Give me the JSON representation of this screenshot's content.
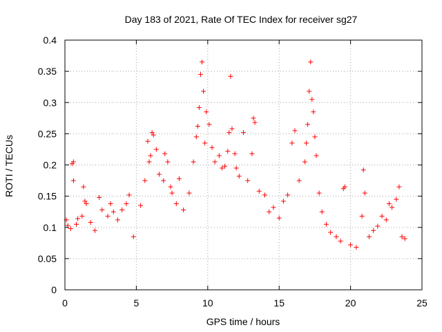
{
  "chart_data": {
    "type": "scatter",
    "title": "Day 183 of 2021, Rate Of TEC Index for receiver sg27",
    "xlabel": "GPS time / hours",
    "ylabel": "ROTI / TECUs",
    "xlim": [
      0,
      25
    ],
    "ylim": [
      0,
      0.4
    ],
    "xticks": [
      0,
      5,
      10,
      15,
      20,
      25
    ],
    "xtick_labels": [
      "0",
      "5",
      "10",
      "15",
      "20",
      "25"
    ],
    "yticks": [
      0,
      0.05,
      0.1,
      0.15,
      0.2,
      0.25,
      0.3,
      0.35,
      0.4
    ],
    "ytick_labels": [
      "0",
      "0.05",
      "0.1",
      "0.15",
      "0.2",
      "0.25",
      "0.3",
      "0.35",
      "0.4"
    ],
    "grid": true,
    "marker": "plus",
    "color": "#ff0000",
    "series": [
      {
        "name": "ROTI",
        "points": [
          [
            0.1,
            0.112
          ],
          [
            0.2,
            0.103
          ],
          [
            0.4,
            0.098
          ],
          [
            0.5,
            0.202
          ],
          [
            0.6,
            0.205
          ],
          [
            0.6,
            0.175
          ],
          [
            0.8,
            0.105
          ],
          [
            0.9,
            0.114
          ],
          [
            1.2,
            0.118
          ],
          [
            1.3,
            0.165
          ],
          [
            1.4,
            0.142
          ],
          [
            1.5,
            0.138
          ],
          [
            1.8,
            0.108
          ],
          [
            2.1,
            0.095
          ],
          [
            2.4,
            0.148
          ],
          [
            2.6,
            0.128
          ],
          [
            3.0,
            0.118
          ],
          [
            3.2,
            0.138
          ],
          [
            3.4,
            0.125
          ],
          [
            3.7,
            0.112
          ],
          [
            4.0,
            0.128
          ],
          [
            4.3,
            0.138
          ],
          [
            4.5,
            0.152
          ],
          [
            4.8,
            0.085
          ],
          [
            5.3,
            0.135
          ],
          [
            5.6,
            0.175
          ],
          [
            5.8,
            0.238
          ],
          [
            5.9,
            0.205
          ],
          [
            6.0,
            0.215
          ],
          [
            6.1,
            0.252
          ],
          [
            6.2,
            0.248
          ],
          [
            6.4,
            0.225
          ],
          [
            6.6,
            0.185
          ],
          [
            6.9,
            0.175
          ],
          [
            7.0,
            0.218
          ],
          [
            7.2,
            0.205
          ],
          [
            7.4,
            0.165
          ],
          [
            7.5,
            0.155
          ],
          [
            7.8,
            0.138
          ],
          [
            8.0,
            0.178
          ],
          [
            8.3,
            0.128
          ],
          [
            8.7,
            0.155
          ],
          [
            9.0,
            0.205
          ],
          [
            9.2,
            0.245
          ],
          [
            9.3,
            0.262
          ],
          [
            9.4,
            0.292
          ],
          [
            9.5,
            0.345
          ],
          [
            9.6,
            0.365
          ],
          [
            9.7,
            0.318
          ],
          [
            9.8,
            0.235
          ],
          [
            9.9,
            0.285
          ],
          [
            10.1,
            0.265
          ],
          [
            10.3,
            0.228
          ],
          [
            10.5,
            0.205
          ],
          [
            10.8,
            0.215
          ],
          [
            11.0,
            0.195
          ],
          [
            11.2,
            0.198
          ],
          [
            11.4,
            0.222
          ],
          [
            11.5,
            0.252
          ],
          [
            11.6,
            0.342
          ],
          [
            11.7,
            0.258
          ],
          [
            11.9,
            0.218
          ],
          [
            12.0,
            0.195
          ],
          [
            12.2,
            0.182
          ],
          [
            12.5,
            0.252
          ],
          [
            12.8,
            0.175
          ],
          [
            13.1,
            0.218
          ],
          [
            13.2,
            0.275
          ],
          [
            13.3,
            0.268
          ],
          [
            13.6,
            0.158
          ],
          [
            14.0,
            0.152
          ],
          [
            14.3,
            0.125
          ],
          [
            14.6,
            0.132
          ],
          [
            15.0,
            0.115
          ],
          [
            15.3,
            0.142
          ],
          [
            15.6,
            0.152
          ],
          [
            15.9,
            0.235
          ],
          [
            16.1,
            0.255
          ],
          [
            16.4,
            0.175
          ],
          [
            16.8,
            0.205
          ],
          [
            16.9,
            0.235
          ],
          [
            17.0,
            0.265
          ],
          [
            17.1,
            0.318
          ],
          [
            17.2,
            0.365
          ],
          [
            17.3,
            0.305
          ],
          [
            17.4,
            0.285
          ],
          [
            17.5,
            0.245
          ],
          [
            17.6,
            0.215
          ],
          [
            17.8,
            0.155
          ],
          [
            18.0,
            0.125
          ],
          [
            18.3,
            0.105
          ],
          [
            18.6,
            0.092
          ],
          [
            19.0,
            0.085
          ],
          [
            19.3,
            0.078
          ],
          [
            19.5,
            0.162
          ],
          [
            19.6,
            0.165
          ],
          [
            20.0,
            0.072
          ],
          [
            20.4,
            0.068
          ],
          [
            20.8,
            0.118
          ],
          [
            20.9,
            0.192
          ],
          [
            21.0,
            0.155
          ],
          [
            21.3,
            0.085
          ],
          [
            21.6,
            0.095
          ],
          [
            21.9,
            0.102
          ],
          [
            22.2,
            0.118
          ],
          [
            22.5,
            0.112
          ],
          [
            22.7,
            0.138
          ],
          [
            22.9,
            0.132
          ],
          [
            23.2,
            0.145
          ],
          [
            23.4,
            0.165
          ],
          [
            23.6,
            0.085
          ],
          [
            23.8,
            0.082
          ]
        ]
      }
    ]
  }
}
